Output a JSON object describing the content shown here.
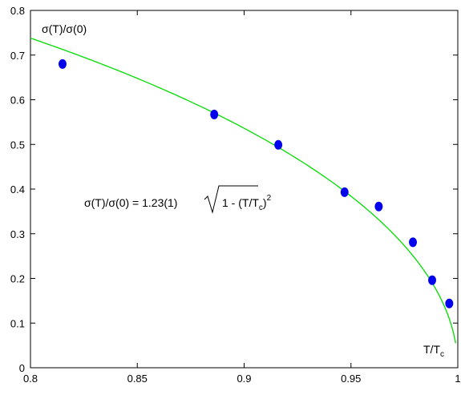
{
  "chart_data": {
    "type": "scatter",
    "xlim": [
      0.8,
      1.0
    ],
    "ylim": [
      0,
      0.8
    ],
    "xticks": [
      "0.8",
      "0.85",
      "0.9",
      "0.95",
      "1"
    ],
    "yticks": [
      "0",
      "0.1",
      "0.2",
      "0.3",
      "0.4",
      "0.5",
      "0.6",
      "0.7",
      "0.8"
    ],
    "xlabel": "T/T",
    "xlabel_sub": "c",
    "ylabel": "σ(T)/σ(0)",
    "formula": {
      "prefix": "σ(T)/σ(0) = 1.23(1)",
      "radicand": "1 - (T/T",
      "sub": "c",
      "close": ")",
      "exp": "2"
    },
    "points": {
      "color": "#0000ee",
      "x": [
        0.815,
        0.886,
        0.916,
        0.947,
        0.963,
        0.979,
        0.988,
        0.996
      ],
      "y": [
        0.68,
        0.567,
        0.499,
        0.393,
        0.361,
        0.281,
        0.196,
        0.144
      ]
    },
    "fit": {
      "color": "#00dd00",
      "amplitude": 1.23,
      "x_range": [
        0.8,
        0.999
      ]
    },
    "grid": false
  }
}
